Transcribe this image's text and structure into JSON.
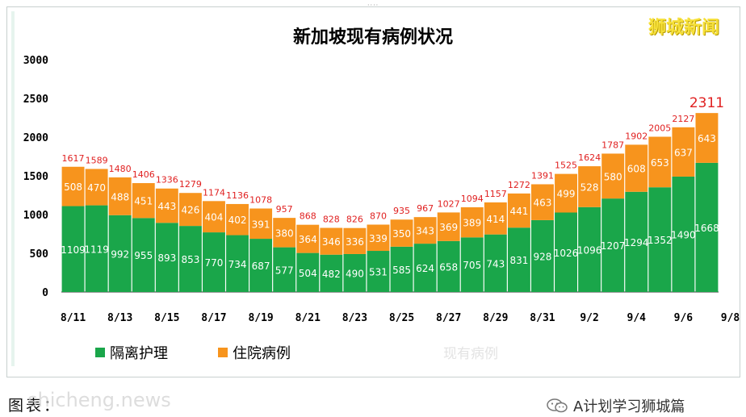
{
  "brand": "狮城新闻",
  "legend": {
    "isolation": "隔离护理",
    "hospital": "住院病例"
  },
  "watermark": "现有病例",
  "source": "图表：",
  "source_overlay": "shicheng.news",
  "account": "A计划学习狮城篇",
  "icons": {
    "wechat": "wechat-icon"
  },
  "colors": {
    "isolation": "#1aa64a",
    "hospital": "#f7941d",
    "total_label": "#e02020",
    "bg": "#ffffff"
  },
  "chart_data": {
    "type": "bar",
    "stacked": true,
    "title": "新加坡现有病例状况",
    "categories": [
      "8/11",
      "8/12",
      "8/13",
      "8/14",
      "8/15",
      "8/16",
      "8/17",
      "8/18",
      "8/19",
      "8/20",
      "8/21",
      "8/22",
      "8/23",
      "8/24",
      "8/25",
      "8/26",
      "8/27",
      "8/28",
      "8/29",
      "8/30",
      "8/31",
      "9/1",
      "9/2",
      "9/3",
      "9/4",
      "9/5",
      "9/6",
      "9/7"
    ],
    "x_tick_labels": [
      "8/11",
      "8/13",
      "8/15",
      "8/17",
      "8/19",
      "8/21",
      "8/23",
      "8/25",
      "8/27",
      "8/29",
      "8/31",
      "9/2",
      "9/4",
      "9/6",
      "9/8"
    ],
    "series": [
      {
        "name": "隔离护理",
        "values": [
          1109,
          1119,
          992,
          955,
          893,
          853,
          770,
          734,
          687,
          577,
          504,
          482,
          490,
          531,
          585,
          624,
          658,
          705,
          743,
          831,
          928,
          1026,
          1096,
          1207,
          1294,
          1352,
          1490,
          1668
        ]
      },
      {
        "name": "住院病例",
        "values": [
          508,
          470,
          488,
          451,
          443,
          426,
          404,
          402,
          391,
          380,
          364,
          346,
          336,
          339,
          350,
          343,
          369,
          389,
          414,
          441,
          463,
          499,
          528,
          580,
          608,
          653,
          637,
          643
        ]
      }
    ],
    "totals": [
      1617,
      1589,
      1480,
      1406,
      1336,
      1279,
      1174,
      1136,
      1078,
      957,
      868,
      828,
      826,
      870,
      935,
      967,
      1027,
      1094,
      1157,
      1272,
      1391,
      1525,
      1624,
      1787,
      1902,
      2005,
      2127,
      2311
    ],
    "ylim": [
      0,
      3000
    ],
    "yticks": [
      0,
      500,
      1000,
      1500,
      2000,
      2500,
      3000
    ],
    "grid": false,
    "legend_position": "bottom-left"
  }
}
